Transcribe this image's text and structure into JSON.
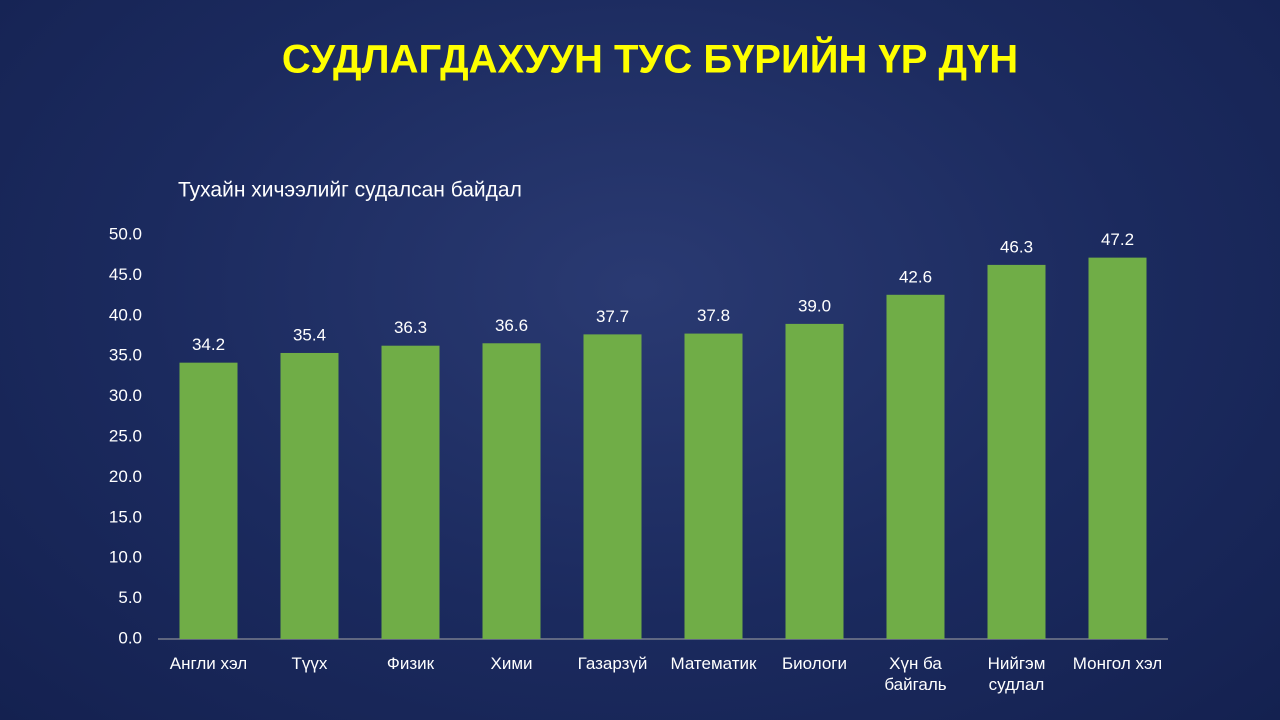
{
  "chart_data": {
    "type": "bar",
    "title": "СУДЛАГДАХУУН ТУС БҮРИЙН ҮР ДҮН",
    "subtitle": "Тухайн хичээлийг судалсан байдал",
    "categories": [
      "Англи хэл",
      "Түүх",
      "Физик",
      "Хими",
      "Газарзүй",
      "Математик",
      "Биологи",
      "Хүн ба\nбайгаль",
      "Нийгэм\nсудлал",
      "Монгол хэл"
    ],
    "values": [
      34.2,
      35.4,
      36.3,
      36.6,
      37.7,
      37.8,
      39.0,
      42.6,
      46.3,
      47.2
    ],
    "value_labels": [
      "34.2",
      "35.4",
      "36.3",
      "36.6",
      "37.7",
      "37.8",
      "39.0",
      "42.6",
      "46.3",
      "47.2"
    ],
    "color": "#70ad47",
    "ylim": [
      0,
      50
    ],
    "yticks": [
      {
        "value": 0,
        "label": "0.0"
      },
      {
        "value": 5,
        "label": "5.0"
      },
      {
        "value": 10,
        "label": "10.0"
      },
      {
        "value": 15,
        "label": "15.0"
      },
      {
        "value": 20,
        "label": "20.0"
      },
      {
        "value": 25,
        "label": "25.0"
      },
      {
        "value": 30,
        "label": "30.0"
      },
      {
        "value": 35,
        "label": "35.0"
      },
      {
        "value": 40,
        "label": "40.0"
      },
      {
        "value": 45,
        "label": "45.0"
      },
      {
        "value": 50,
        "label": "50.0"
      }
    ],
    "grid": false
  }
}
